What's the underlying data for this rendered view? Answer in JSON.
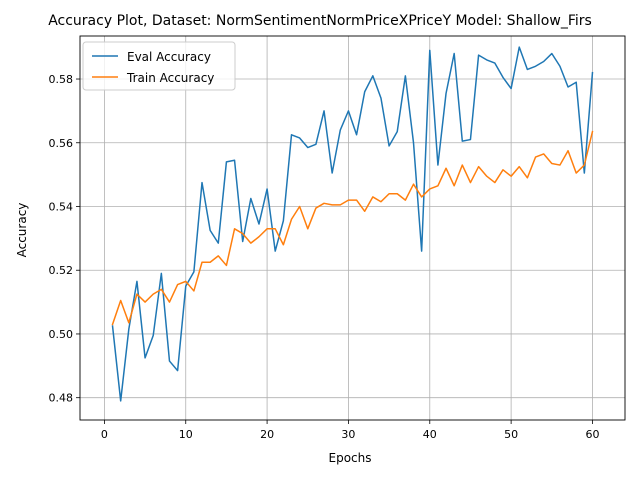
{
  "chart_data": {
    "type": "line",
    "title": "Accuracy Plot, Dataset: NormSentimentNormPriceXPriceY Model: Shallow_Firs",
    "xlabel": "Epochs",
    "ylabel": "Accuracy",
    "xlim": [
      -3.0,
      64.0
    ],
    "ylim": [
      0.473,
      0.5935
    ],
    "xticks": [
      0,
      10,
      20,
      30,
      40,
      50,
      60
    ],
    "yticks": [
      0.48,
      0.5,
      0.52,
      0.54,
      0.56,
      0.58
    ],
    "xtick_labels": [
      "0",
      "10",
      "20",
      "30",
      "40",
      "50",
      "60"
    ],
    "ytick_labels": [
      "0.48",
      "0.50",
      "0.52",
      "0.54",
      "0.56",
      "0.58"
    ],
    "grid": true,
    "legend_position": "upper-left",
    "x": [
      1,
      2,
      3,
      4,
      5,
      6,
      7,
      8,
      9,
      10,
      11,
      12,
      13,
      14,
      15,
      16,
      17,
      18,
      19,
      20,
      21,
      22,
      23,
      24,
      25,
      26,
      27,
      28,
      29,
      30,
      31,
      32,
      33,
      34,
      35,
      36,
      37,
      38,
      39,
      40,
      41,
      42,
      43,
      44,
      45,
      46,
      47,
      48,
      49,
      50,
      51,
      52,
      53,
      54,
      55,
      56,
      57,
      58,
      59,
      60
    ],
    "series": [
      {
        "name": "Eval Accuracy",
        "color": "#1f77b4",
        "values": [
          0.5025,
          0.479,
          0.5015,
          0.5165,
          0.4925,
          0.4995,
          0.519,
          0.4915,
          0.4885,
          0.515,
          0.5195,
          0.5475,
          0.5325,
          0.5285,
          0.554,
          0.5545,
          0.529,
          0.5425,
          0.5345,
          0.5455,
          0.526,
          0.5355,
          0.5625,
          0.5615,
          0.5585,
          0.5595,
          0.57,
          0.5505,
          0.564,
          0.57,
          0.5625,
          0.576,
          0.581,
          0.574,
          0.559,
          0.5635,
          0.581,
          0.56,
          0.526,
          0.589,
          0.553,
          0.5755,
          0.588,
          0.5605,
          0.561,
          0.5875,
          0.586,
          0.585,
          0.5805,
          0.577,
          0.59,
          0.583,
          0.584,
          0.5855,
          0.588,
          0.584,
          0.5775,
          0.579,
          0.5505,
          0.582
        ]
      },
      {
        "name": "Train Accuracy",
        "color": "#ff7f0e",
        "values": [
          0.503,
          0.5105,
          0.5035,
          0.5125,
          0.51,
          0.5125,
          0.514,
          0.51,
          0.5155,
          0.5165,
          0.5135,
          0.5225,
          0.5225,
          0.5245,
          0.5215,
          0.533,
          0.5315,
          0.5285,
          0.5305,
          0.533,
          0.533,
          0.528,
          0.536,
          0.54,
          0.533,
          0.5395,
          0.541,
          0.5405,
          0.5405,
          0.542,
          0.542,
          0.5385,
          0.543,
          0.5415,
          0.544,
          0.544,
          0.542,
          0.547,
          0.543,
          0.5455,
          0.5465,
          0.552,
          0.5465,
          0.553,
          0.5475,
          0.5525,
          0.5495,
          0.5475,
          0.5515,
          0.5495,
          0.5525,
          0.549,
          0.5555,
          0.5565,
          0.5535,
          0.553,
          0.5575,
          0.5505,
          0.553,
          0.5635
        ]
      }
    ]
  }
}
